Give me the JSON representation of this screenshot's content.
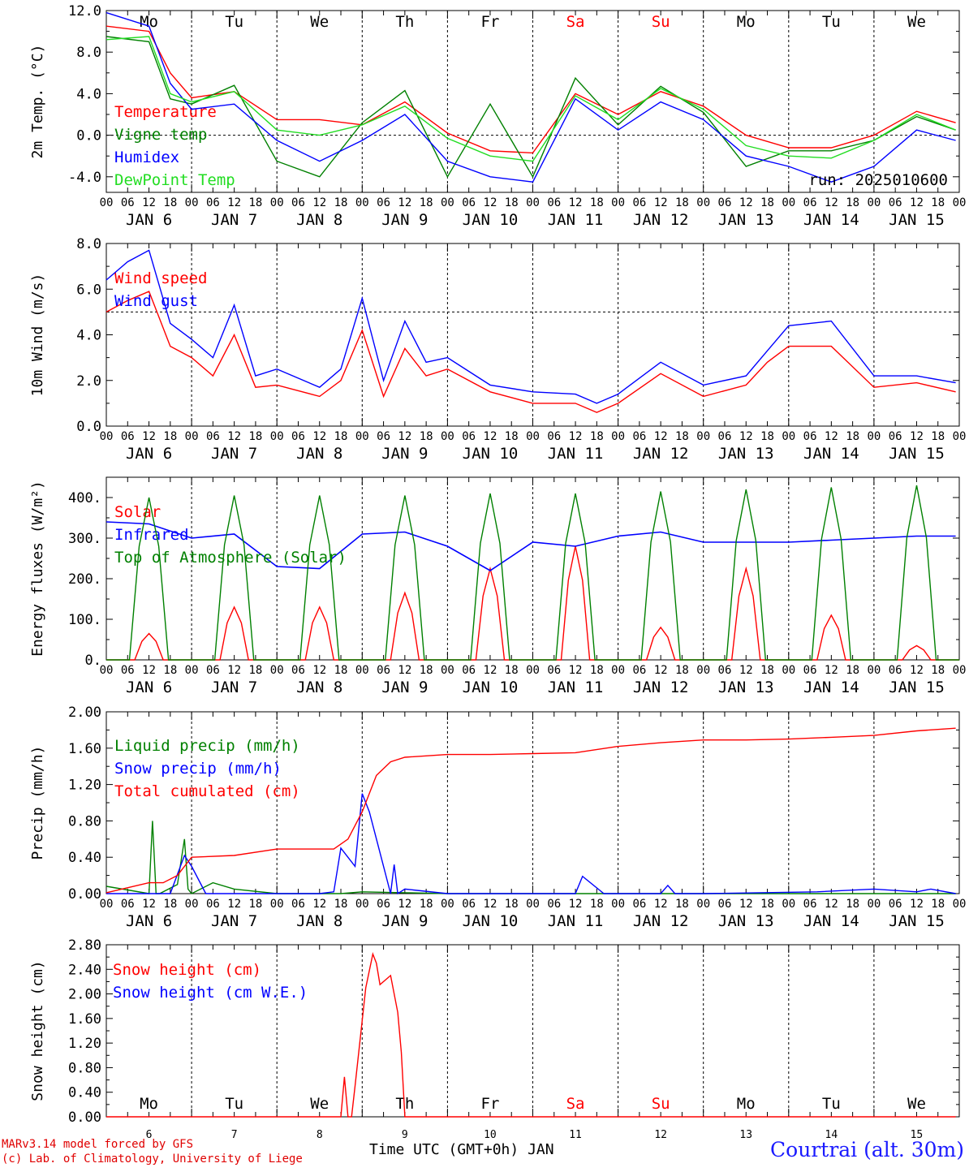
{
  "run_label": "run: 2025010600",
  "footer": {
    "model": "MARv3.14 model forced by GFS",
    "credit": "(c) Lab. of Climatology, University of Liege",
    "axis_title": "Time UTC (GMT+0h) JAN",
    "location": "Courtrai (alt. 30m)"
  },
  "days": [
    "6",
    "7",
    "8",
    "9",
    "10",
    "11",
    "12",
    "13",
    "14",
    "15"
  ],
  "weekdays": [
    "Mo",
    "Tu",
    "We",
    "Th",
    "Fr",
    "Sa",
    "Su",
    "Mo",
    "Tu",
    "We"
  ],
  "weekend": [
    false,
    false,
    false,
    false,
    false,
    true,
    true,
    false,
    false,
    false
  ],
  "hour_ticks": [
    "00",
    "06",
    "12",
    "18"
  ],
  "month": "JAN",
  "colors": {
    "red": "#ff0000",
    "green": "#008000",
    "blue": "#0000ff",
    "lightgreen": "#22dd22"
  },
  "chart_data": [
    {
      "type": "line",
      "ylabel": "2m Temp. (°C)",
      "ylim": [
        -5.5,
        12.0
      ],
      "ticks": [
        "-4.0",
        "0.0",
        "4.0",
        "8.0",
        "12.0"
      ],
      "tick_values": [
        -4,
        0,
        4,
        8,
        12
      ],
      "ref_line": 0,
      "series": [
        {
          "name": "Temperature",
          "color": "red",
          "x": [
            0,
            12,
            18,
            24,
            36,
            48,
            60,
            72,
            84,
            96,
            108,
            120,
            132,
            144,
            156,
            168,
            180,
            192,
            204,
            216,
            228,
            239
          ],
          "values": [
            10.5,
            10.0,
            6.0,
            3.6,
            4.2,
            1.5,
            1.5,
            1.0,
            3.2,
            0.2,
            -1.5,
            -1.7,
            4.0,
            2.0,
            4.2,
            2.8,
            0.0,
            -1.2,
            -1.2,
            0.0,
            2.3,
            1.2
          ]
        },
        {
          "name": "Vigne temp",
          "color": "green",
          "x": [
            0,
            12,
            18,
            24,
            36,
            48,
            60,
            72,
            84,
            96,
            108,
            120,
            132,
            144,
            156,
            168,
            180,
            192,
            204,
            216,
            228,
            239
          ],
          "values": [
            9.5,
            9.0,
            3.5,
            3.0,
            4.8,
            -2.5,
            -4.0,
            1.2,
            4.3,
            -4.0,
            3.0,
            -4.0,
            5.5,
            1.0,
            4.7,
            2.2,
            -3.0,
            -1.5,
            -1.5,
            -0.5,
            1.8,
            0.5
          ]
        },
        {
          "name": "Humidex",
          "color": "blue",
          "x": [
            0,
            12,
            18,
            24,
            36,
            48,
            60,
            72,
            84,
            96,
            108,
            120,
            132,
            144,
            156,
            168,
            180,
            192,
            204,
            216,
            228,
            239
          ],
          "values": [
            11.8,
            10.5,
            5.0,
            2.5,
            3.0,
            -0.5,
            -2.5,
            -0.5,
            2.0,
            -2.5,
            -4.0,
            -4.5,
            3.5,
            0.5,
            3.2,
            1.5,
            -2.0,
            -3.0,
            -4.5,
            -3.0,
            0.5,
            -0.5
          ]
        },
        {
          "name": "DewPoint Temp",
          "color": "lightgreen",
          "x": [
            0,
            12,
            18,
            24,
            36,
            48,
            60,
            72,
            84,
            96,
            108,
            120,
            132,
            144,
            156,
            168,
            180,
            192,
            204,
            216,
            228,
            239
          ],
          "values": [
            9.2,
            9.5,
            4.0,
            3.2,
            4.2,
            0.5,
            0.0,
            1.0,
            2.8,
            -0.3,
            -2.0,
            -2.5,
            3.8,
            1.5,
            4.5,
            2.5,
            -1.0,
            -2.0,
            -2.2,
            -0.5,
            2.0,
            0.5
          ]
        }
      ]
    },
    {
      "type": "line",
      "ylabel": "10m Wind (m/s)",
      "ylim": [
        0.0,
        8.0
      ],
      "ticks": [
        "0.0",
        "2.0",
        "4.0",
        "6.0",
        "8.0"
      ],
      "tick_values": [
        0,
        2,
        4,
        6,
        8
      ],
      "ref_line": 5,
      "series": [
        {
          "name": "Wind speed",
          "color": "red",
          "x": [
            0,
            6,
            12,
            18,
            24,
            30,
            36,
            42,
            48,
            60,
            66,
            72,
            78,
            84,
            90,
            96,
            108,
            120,
            132,
            138,
            144,
            156,
            168,
            180,
            186,
            192,
            204,
            216,
            228,
            239
          ],
          "values": [
            5.0,
            5.5,
            5.9,
            3.5,
            3.0,
            2.2,
            4.0,
            1.7,
            1.8,
            1.3,
            2.0,
            4.2,
            1.3,
            3.4,
            2.2,
            2.5,
            1.5,
            1.0,
            1.0,
            0.6,
            1.0,
            2.3,
            1.3,
            1.8,
            2.8,
            3.5,
            3.5,
            1.7,
            1.9,
            1.5
          ]
        },
        {
          "name": "Wind gust",
          "color": "blue",
          "x": [
            0,
            6,
            12,
            18,
            24,
            30,
            36,
            42,
            48,
            60,
            66,
            72,
            78,
            84,
            90,
            96,
            108,
            120,
            132,
            138,
            144,
            156,
            168,
            180,
            186,
            192,
            204,
            216,
            228,
            239
          ],
          "values": [
            6.4,
            7.2,
            7.7,
            4.5,
            3.8,
            3.0,
            5.3,
            2.2,
            2.5,
            1.7,
            2.5,
            5.6,
            2.0,
            4.6,
            2.8,
            3.0,
            1.8,
            1.5,
            1.4,
            1.0,
            1.4,
            2.8,
            1.8,
            2.2,
            3.3,
            4.4,
            4.6,
            2.2,
            2.2,
            1.9
          ]
        }
      ]
    },
    {
      "type": "line",
      "ylabel": "Energy fluxes (W/m²)",
      "ylim": [
        0,
        450
      ],
      "ticks": [
        "0.",
        "100.",
        "200.",
        "300.",
        "400."
      ],
      "tick_values": [
        0,
        100,
        200,
        300,
        400
      ],
      "series": [
        {
          "name": "Solar",
          "color": "red",
          "peaks": [
            65,
            130,
            130,
            165,
            225,
            280,
            80,
            225,
            110,
            35
          ]
        },
        {
          "name": "Infrared",
          "color": "blue",
          "x": [
            0,
            12,
            24,
            36,
            48,
            60,
            72,
            84,
            96,
            108,
            120,
            132,
            144,
            156,
            168,
            180,
            192,
            204,
            216,
            228,
            239
          ],
          "values": [
            340,
            335,
            300,
            310,
            230,
            225,
            310,
            315,
            280,
            220,
            290,
            280,
            305,
            315,
            290,
            290,
            290,
            295,
            300,
            305,
            305
          ]
        },
        {
          "name": "Top of Atmosphere (Solar)",
          "color": "green",
          "peaks": [
            400,
            405,
            405,
            405,
            410,
            410,
            415,
            420,
            425,
            430
          ]
        }
      ]
    },
    {
      "type": "line",
      "ylabel": "Precip (mm/h)",
      "ylim": [
        0.0,
        2.0
      ],
      "ticks": [
        "0.00",
        "0.40",
        "0.80",
        "1.20",
        "1.60",
        "2.00"
      ],
      "tick_values": [
        0,
        0.4,
        0.8,
        1.2,
        1.6,
        2.0
      ],
      "series": [
        {
          "name": "Liquid precip (mm/h)",
          "color": "green",
          "x": [
            0,
            12,
            13,
            14,
            15,
            20,
            22,
            23,
            24,
            30,
            36,
            48,
            60,
            66,
            72,
            84,
            96,
            120,
            144,
            168,
            200,
            239
          ],
          "values": [
            0.08,
            0.0,
            0.8,
            0.0,
            0.0,
            0.1,
            0.6,
            0.05,
            0.0,
            0.12,
            0.05,
            0.0,
            0.0,
            0.0,
            0.02,
            0.01,
            0.0,
            0.0,
            0.0,
            0.0,
            0.0,
            0.0
          ]
        },
        {
          "name": "Snow precip (mm/h)",
          "color": "blue",
          "x": [
            0,
            18,
            22,
            24,
            28,
            60,
            64,
            66,
            70,
            72,
            74,
            78,
            80,
            81,
            82,
            84,
            96,
            132,
            134,
            140,
            156,
            158,
            160,
            168,
            200,
            216,
            228,
            232,
            239
          ],
          "values": [
            0.0,
            0.0,
            0.42,
            0.3,
            0.0,
            0.0,
            0.02,
            0.5,
            0.3,
            1.1,
            0.9,
            0.3,
            0.0,
            0.32,
            0.0,
            0.05,
            0.0,
            0.0,
            0.19,
            0.0,
            0.0,
            0.09,
            0.0,
            0.0,
            0.02,
            0.05,
            0.02,
            0.05,
            0.0
          ]
        },
        {
          "name": "Total cumulated (cm)",
          "color": "red",
          "x": [
            0,
            12,
            16,
            20,
            24,
            36,
            48,
            60,
            64,
            68,
            72,
            76,
            80,
            84,
            96,
            108,
            120,
            132,
            144,
            156,
            168,
            180,
            192,
            204,
            216,
            228,
            239
          ],
          "values": [
            0.01,
            0.12,
            0.12,
            0.2,
            0.4,
            0.42,
            0.49,
            0.49,
            0.49,
            0.6,
            0.9,
            1.3,
            1.45,
            1.5,
            1.53,
            1.53,
            1.54,
            1.55,
            1.62,
            1.66,
            1.69,
            1.69,
            1.7,
            1.72,
            1.74,
            1.79,
            1.82
          ]
        }
      ]
    },
    {
      "type": "line",
      "ylabel": "Snow height (cm)",
      "ylim": [
        0.0,
        2.8
      ],
      "ticks": [
        "0.00",
        "0.40",
        "0.80",
        "1.20",
        "1.60",
        "2.00",
        "2.40",
        "2.80"
      ],
      "tick_values": [
        0,
        0.4,
        0.8,
        1.2,
        1.6,
        2.0,
        2.4,
        2.8
      ],
      "series": [
        {
          "name": "Snow height (cm)",
          "color": "red",
          "x": [
            0,
            66,
            67,
            68,
            69,
            70,
            73,
            75,
            76,
            77,
            80,
            82,
            83,
            84,
            239
          ],
          "values": [
            0.0,
            0.0,
            0.65,
            0.0,
            0.0,
            0.5,
            2.1,
            2.65,
            2.5,
            2.15,
            2.3,
            1.7,
            1.05,
            0.0,
            0.0
          ]
        },
        {
          "name": "Snow height (cm W.E.)",
          "color": "blue",
          "x": [],
          "values": []
        }
      ]
    }
  ]
}
